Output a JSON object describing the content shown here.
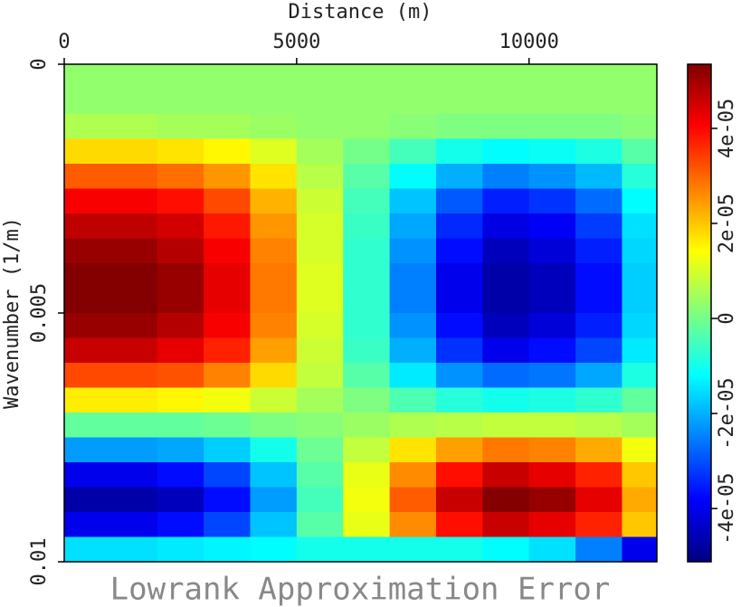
{
  "chart_data": {
    "type": "heatmap",
    "title": "Lowrank Approximation Error",
    "x_label": "Distance (m)",
    "y_label": "Wavenumber (1/m)",
    "colormap": "jet",
    "xlim": [
      0,
      12750
    ],
    "xticks": [
      0,
      5000,
      10000
    ],
    "ylim": [
      0,
      0.01
    ],
    "yticks": [
      0,
      0.005,
      0.01
    ],
    "zlim": [
      -5.12e-05,
      5.35e-05
    ],
    "zticks": [
      {
        "value": -4e-05,
        "label": "-4e-05"
      },
      {
        "value": -2e-05,
        "label": "-2e-05"
      },
      0,
      {
        "value": 2e-05,
        "label": "2e-05"
      },
      {
        "value": 4e-05,
        "label": "4e-05"
      }
    ],
    "x": [
      500,
      1500,
      2500,
      3500,
      4500,
      5500,
      6500,
      7500,
      8500,
      9500,
      10500,
      11500,
      12500
    ],
    "y": [
      0.00025,
      0.00075,
      0.00125,
      0.00175,
      0.00225,
      0.00275,
      0.00325,
      0.00375,
      0.00425,
      0.00475,
      0.00525,
      0.00575,
      0.00625,
      0.00675,
      0.00725,
      0.00775,
      0.00825,
      0.00875,
      0.00925,
      0.00975
    ],
    "values": [
      [
        3e-06,
        3e-06,
        3e-06,
        3e-06,
        3e-06,
        3e-06,
        3e-06,
        3e-06,
        3e-06,
        3e-06,
        3e-06,
        3e-06,
        3e-06
      ],
      [
        3e-06,
        3e-06,
        3e-06,
        3e-06,
        3e-06,
        3e-06,
        3e-06,
        3e-06,
        3e-06,
        3e-06,
        3e-06,
        3e-06,
        3e-06
      ],
      [
        6e-06,
        6e-06,
        5e-06,
        5e-06,
        4e-06,
        3e-06,
        3e-06,
        2e-06,
        1e-06,
        1e-06,
        1e-06,
        1e-06,
        2e-06
      ],
      [
        1.8e-05,
        1.8e-05,
        1.7e-05,
        1.5e-05,
        1.1e-05,
        5e-06,
        0,
        -5e-06,
        -1e-05,
        -1.2e-05,
        -1.1e-05,
        -9e-06,
        -3e-06
      ],
      [
        3.1e-05,
        3.1e-05,
        2.9e-05,
        2.5e-05,
        1.7e-05,
        7e-06,
        -3e-06,
        -1.2e-05,
        -2e-05,
        -2.5e-05,
        -2.3e-05,
        -1.9e-05,
        -8e-06
      ],
      [
        4.1e-05,
        4.1e-05,
        3.9e-05,
        3.3e-05,
        2.2e-05,
        9e-06,
        -5e-06,
        -1.8e-05,
        -2.9e-05,
        -3.5e-05,
        -3.3e-05,
        -2.7e-05,
        -1.2e-05
      ],
      [
        4.7e-05,
        4.7e-05,
        4.5e-05,
        3.8e-05,
        2.5e-05,
        1e-05,
        -6e-06,
        -2.1e-05,
        -3.4e-05,
        -4.1e-05,
        -3.9e-05,
        -3.2e-05,
        -1.5e-05
      ],
      [
        5.1e-05,
        5.1e-05,
        4.8e-05,
        4.1e-05,
        2.7e-05,
        1e-05,
        -7e-06,
        -2.3e-05,
        -3.7e-05,
        -4.5e-05,
        -4.2e-05,
        -3.5e-05,
        -1.6e-05
      ],
      [
        5.3e-05,
        5.3e-05,
        5.1e-05,
        4.3e-05,
        2.8e-05,
        1.1e-05,
        -7e-06,
        -2.5e-05,
        -4e-05,
        -4.7e-05,
        -4.5e-05,
        -3.7e-05,
        -1.7e-05
      ],
      [
        5.3e-05,
        5.3e-05,
        5.1e-05,
        4.3e-05,
        2.8e-05,
        1.1e-05,
        -7e-06,
        -2.5e-05,
        -4e-05,
        -4.7e-05,
        -4.5e-05,
        -3.7e-05,
        -1.7e-05
      ],
      [
        5.1e-05,
        5.1e-05,
        4.8e-05,
        4.1e-05,
        2.7e-05,
        1e-05,
        -7e-06,
        -2.3e-05,
        -3.7e-05,
        -4.5e-05,
        -4.2e-05,
        -3.5e-05,
        -1.6e-05
      ],
      [
        4.6e-05,
        4.6e-05,
        4.3e-05,
        3.7e-05,
        2.4e-05,
        9e-06,
        -6e-06,
        -2e-05,
        -3.3e-05,
        -4e-05,
        -3.7e-05,
        -3.1e-05,
        -1.4e-05
      ],
      [
        3.3e-05,
        3.3e-05,
        3.2e-05,
        2.7e-05,
        1.8e-05,
        8e-06,
        -3e-06,
        -1.4e-05,
        -2.3e-05,
        -2.7e-05,
        -2.6e-05,
        -2.1e-05,
        -9e-06
      ],
      [
        1.6e-05,
        1.6e-05,
        1.5e-05,
        1.3e-05,
        9e-06,
        5e-06,
        1e-06,
        -4e-06,
        -8e-06,
        -1e-05,
        -9e-06,
        -7e-06,
        -2e-06
      ],
      [
        -2e-06,
        -2e-06,
        -2e-06,
        -1e-06,
        1e-06,
        2e-06,
        4e-06,
        6e-06,
        7e-06,
        8e-06,
        8e-06,
        7e-06,
        5e-06
      ],
      [
        -2.2e-05,
        -2.2e-05,
        -2.1e-05,
        -1.7e-05,
        -1e-05,
        -1e-06,
        8e-06,
        1.7e-05,
        2.4e-05,
        2.8e-05,
        2.7e-05,
        2.3e-05,
        1.3e-05
      ],
      [
        -4e-05,
        -4e-05,
        -3.7e-05,
        -3.1e-05,
        -1.8e-05,
        -3e-06,
        1.2e-05,
        2.6e-05,
        3.9e-05,
        4.6e-05,
        4.3e-05,
        3.7e-05,
        2e-05
      ],
      [
        -4.7e-05,
        -4.7e-05,
        -4.5e-05,
        -3.7e-05,
        -2.2e-05,
        -5e-06,
        1.3e-05,
        3.1e-05,
        4.6e-05,
        5.3e-05,
        5.1e-05,
        4.3e-05,
        2.3e-05
      ],
      [
        -4e-05,
        -4e-05,
        -3.7e-05,
        -3.1e-05,
        -1.8e-05,
        -3e-06,
        1.2e-05,
        2.6e-05,
        3.9e-05,
        4.6e-05,
        4.3e-05,
        3.7e-05,
        2e-05
      ],
      [
        -1.5e-05,
        -1.5e-05,
        -1.4e-05,
        -1.3e-05,
        -1.2e-05,
        -1e-05,
        -1e-05,
        -1e-05,
        -1e-05,
        -1.2e-05,
        -1.5e-05,
        -2.5e-05,
        -4e-05
      ]
    ]
  }
}
